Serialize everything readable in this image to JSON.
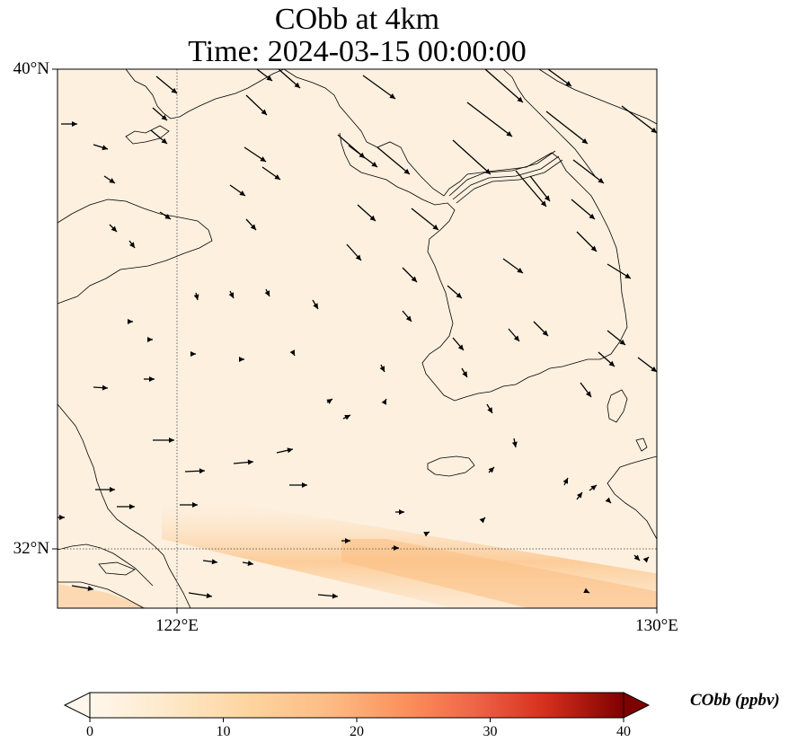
{
  "title": {
    "line1": "CObb at 4km",
    "line2": "Time: 2024-03-15 00:00:00"
  },
  "axes": {
    "lat_labels": [
      "40°N",
      "32°N"
    ],
    "lon_labels": [
      "122°E",
      "130°E"
    ]
  },
  "colorbar": {
    "label": "CObb (ppbv)",
    "ticks": [
      "0",
      "10",
      "20",
      "30",
      "40"
    ],
    "range": [
      0,
      40
    ],
    "colormap": "OrRd",
    "extend": "both"
  },
  "colors": {
    "background_field": "#fdf0df",
    "plume": "#fbc58f",
    "coastline": "#000000",
    "vector": "#000000",
    "grid": "#555555"
  }
}
